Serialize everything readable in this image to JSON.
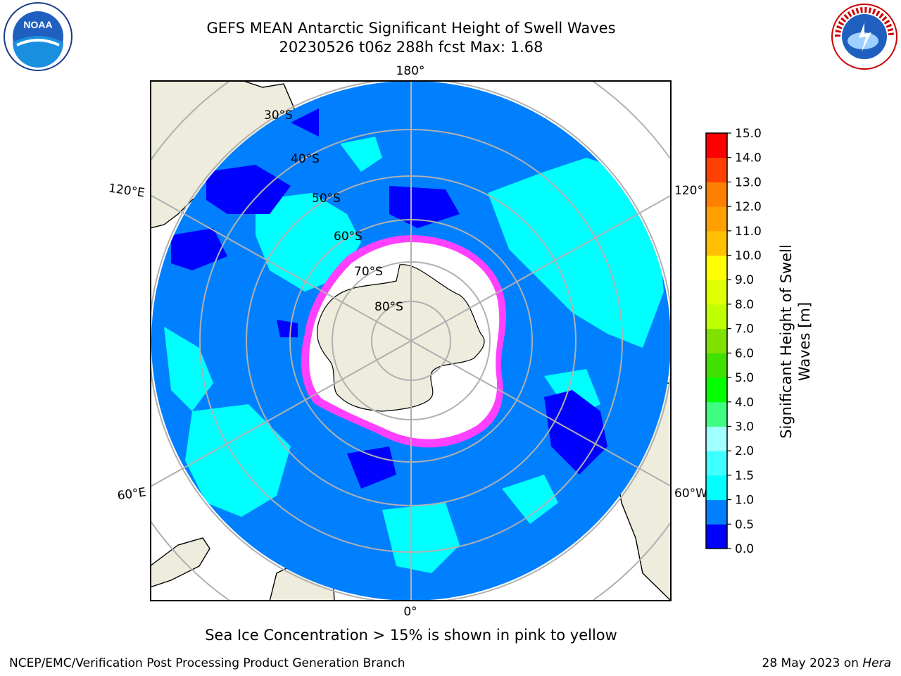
{
  "title_line1": "GEFS MEAN Antarctic Significant Height of Swell Waves",
  "title_line2": "20230526 t06z 288h fcst   Max: 1.68",
  "colorbar": {
    "label_line1": "Significant Height of Swell",
    "label_line2": "Waves [m]",
    "ticks": [
      "0.0",
      "0.5",
      "1.0",
      "1.5",
      "2.0",
      "3.0",
      "4.0",
      "5.0",
      "6.0",
      "7.0",
      "8.0",
      "9.0",
      "10.0",
      "11.0",
      "12.0",
      "13.0",
      "14.0",
      "15.0"
    ],
    "colors": [
      "#0000ff",
      "#0080ff",
      "#00ffff",
      "#40ffff",
      "#a0ffff",
      "#40ff80",
      "#00ff00",
      "#40e000",
      "#80e000",
      "#c0ff00",
      "#e0ff00",
      "#ffff00",
      "#ffc000",
      "#ffa000",
      "#ff8000",
      "#ff4000",
      "#ff0000"
    ]
  },
  "map": {
    "lon_labels": {
      "top": "180°",
      "bottom": "0°",
      "left_upper": "120°E",
      "left_lower": "60°E",
      "right_upper": "120°",
      "right_lower": "60°W"
    },
    "lat_labels": [
      "30°S",
      "40°S",
      "50°S",
      "60°S",
      "70°S",
      "80°S"
    ],
    "colors": {
      "ocean": "#0080ff",
      "swell_high": "#00ffff",
      "swell_low": "#0000ff",
      "land": "#eeecdc",
      "ice": "#ffffff",
      "ice_edge": "#ff40ff"
    }
  },
  "note": "Sea Ice Concentration > 15% is shown in pink to yellow",
  "footer": {
    "left": "NCEP/EMC/Verification Post Processing Product Generation Branch",
    "right_prefix": "28 May 2023 on ",
    "right_machine": "Hera"
  },
  "logos": {
    "noaa": "NOAA",
    "nws": "NATIONAL WEATHER SERVICE"
  }
}
